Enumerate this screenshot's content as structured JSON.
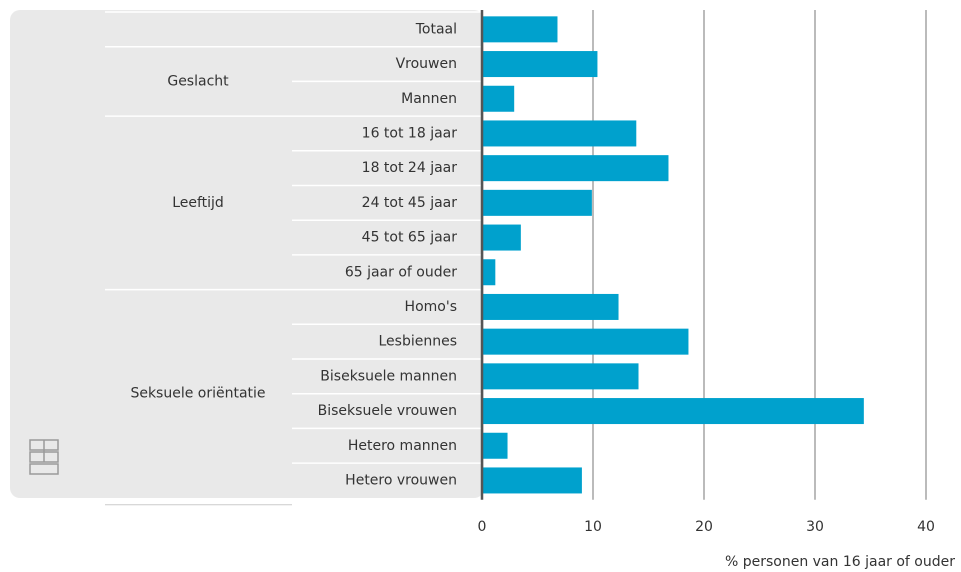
{
  "chart_data": {
    "type": "bar",
    "orientation": "horizontal",
    "groups": [
      {
        "categories": [
          "Totaal"
        ],
        "values": [
          6.8
        ]
      },
      {
        "name": "Geslacht",
        "categories": [
          "Vrouwen",
          "Mannen"
        ],
        "values": [
          10.4,
          2.9
        ]
      },
      {
        "name": "Leeftijd",
        "categories": [
          "16 tot 18 jaar",
          "18 tot 24 jaar",
          "24 tot 45 jaar",
          "45 tot 65 jaar",
          "65 jaar of ouder"
        ],
        "values": [
          13.9,
          16.8,
          9.9,
          3.5,
          1.2
        ]
      },
      {
        "name": "Seksuele oriëntatie",
        "categories": [
          "Homo's",
          "Lesbiennes",
          "Biseksuele mannen",
          "Biseksuele vrouwen",
          "Hetero mannen",
          "Hetero vrouwen"
        ],
        "values": [
          12.3,
          18.6,
          14.1,
          34.4,
          2.3,
          9.0
        ]
      }
    ],
    "color": "#00a1cd",
    "xlim": [
      0,
      40
    ],
    "xticks": [
      0,
      10,
      20,
      30,
      40
    ],
    "x_label": "% personen van 16 jaar of ouder",
    "grid": true
  }
}
